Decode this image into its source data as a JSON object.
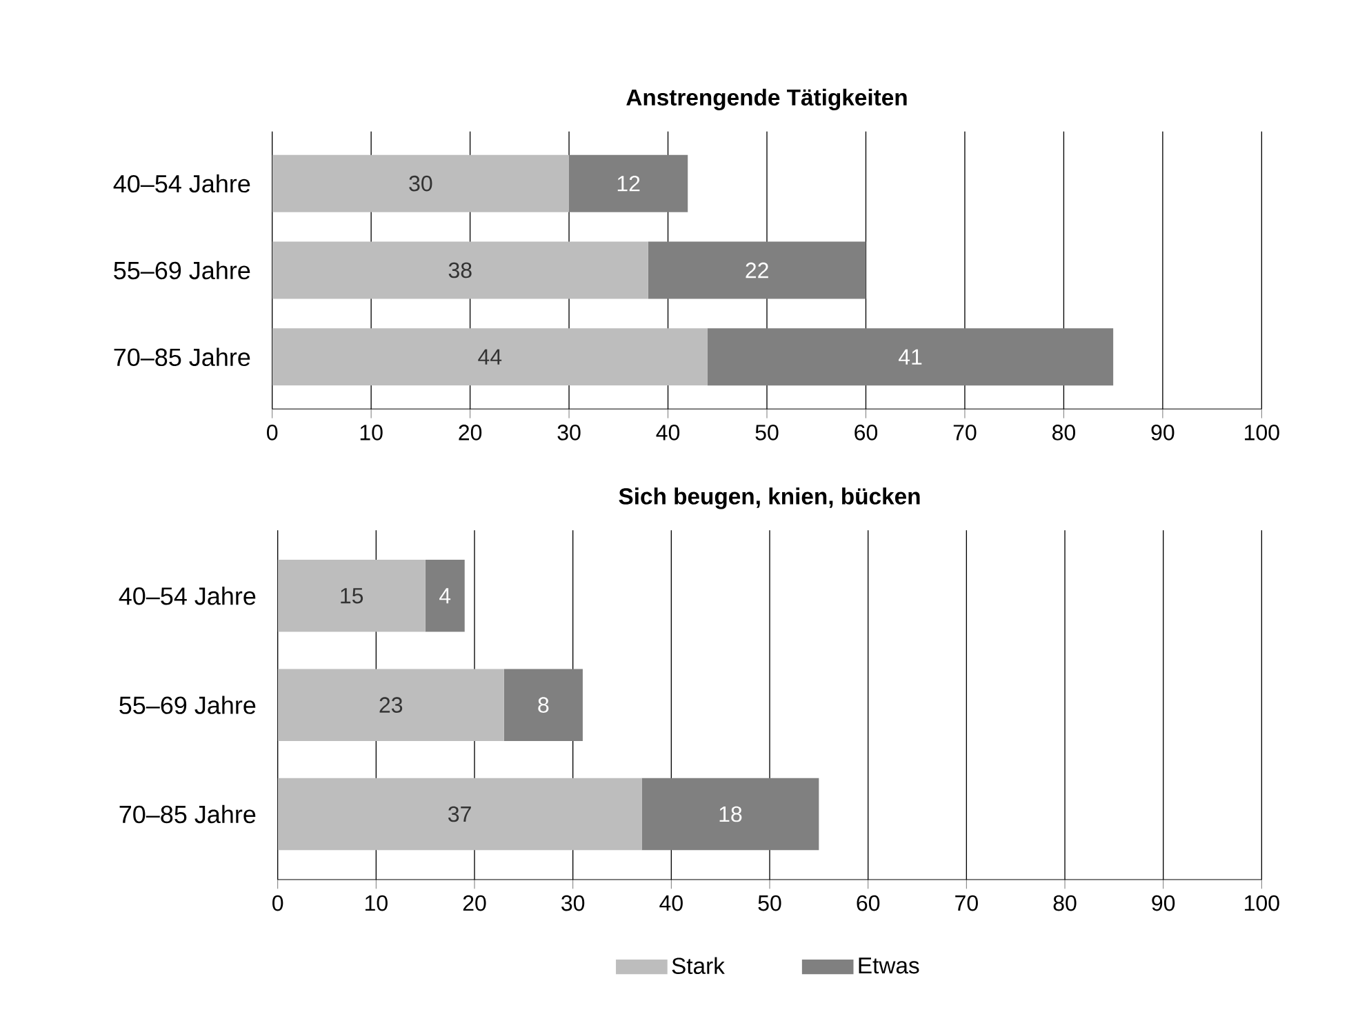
{
  "chart_data": [
    {
      "type": "bar",
      "orientation": "horizontal",
      "stacked": true,
      "title": "Anstrengende Tätigkeiten",
      "categories": [
        "40–54 Jahre",
        "55–69 Jahre",
        "70–85 Jahre"
      ],
      "series": [
        {
          "color": "#bdbdbd",
          "values": [
            30,
            38,
            44
          ]
        },
        {
          "color": "#808080",
          "values": [
            12,
            22,
            41
          ]
        }
      ],
      "xlim": [
        0,
        100
      ],
      "xticks": [
        0,
        10,
        20,
        30,
        40,
        50,
        60,
        70,
        80,
        90,
        100
      ],
      "grid": "x",
      "data_labels": true
    },
    {
      "type": "bar",
      "orientation": "horizontal",
      "stacked": true,
      "title": "Sich beugen, knien, bücken",
      "categories": [
        "40–54 Jahre",
        "55–69 Jahre",
        "70–85 Jahre"
      ],
      "series": [
        {
          "name": "Stark",
          "color": "#bdbdbd",
          "values": [
            15,
            23,
            37
          ]
        },
        {
          "name": "Etwas",
          "color": "#808080",
          "values": [
            4,
            8,
            18
          ]
        }
      ],
      "xlim": [
        0,
        100
      ],
      "xticks": [
        0,
        10,
        20,
        30,
        40,
        50,
        60,
        70,
        80,
        90,
        100
      ],
      "grid": "x",
      "data_labels": true,
      "legend": "bottom"
    }
  ]
}
